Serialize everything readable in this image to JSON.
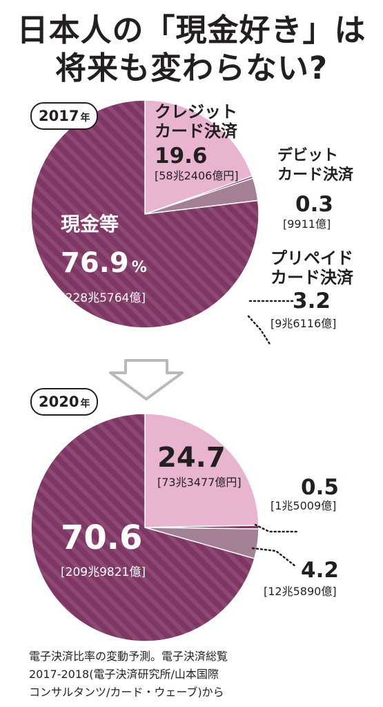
{
  "title": {
    "line1": "日本人の「現金好き」は",
    "line2": "将来も変わらない?"
  },
  "colors": {
    "cash": "#7d3762",
    "cash_stripe": "#8e4874",
    "credit": "#e8b4d0",
    "debit": "#7d3762",
    "prepaid": "#a48096",
    "ink": "#231f20",
    "arrow": "#b9b9b9"
  },
  "charts": [
    {
      "year_label": "2017",
      "year_unit": "年",
      "segments": [
        {
          "name_line1": "クレジット",
          "name_line2": "カード決済",
          "percent": "19.6",
          "value": 19.6,
          "amount": "[58兆2406億円]"
        },
        {
          "name_line1": "デビット",
          "name_line2": "カード決済",
          "percent": "0.3",
          "value": 0.3,
          "amount": "[9911億]"
        },
        {
          "name_line1": "プリペイド",
          "name_line2": "カード決済",
          "percent": "3.2",
          "value": 3.2,
          "amount": "[9兆6116億]"
        },
        {
          "name_line1": "現金等",
          "name_line2": "",
          "percent": "76.9",
          "value": 76.9,
          "amount": "[228兆5764億]",
          "pct_sign": "%"
        }
      ]
    },
    {
      "year_label": "2020",
      "year_unit": "年",
      "segments": [
        {
          "percent": "24.7",
          "value": 24.7,
          "amount": "[73兆3477億円]"
        },
        {
          "percent": "0.5",
          "value": 0.5,
          "amount": "[1兆5009億]"
        },
        {
          "percent": "4.2",
          "value": 4.2,
          "amount": "[12兆5890億]"
        },
        {
          "percent": "70.6",
          "value": 70.6,
          "amount": "[209兆9821億]"
        }
      ]
    }
  ],
  "chart_data": [
    {
      "type": "pie",
      "title": "2017年",
      "categories": [
        "クレジットカード決済",
        "デビットカード決済",
        "プリペイドカード決済",
        "現金等"
      ],
      "values": [
        19.6,
        0.3,
        3.2,
        76.9
      ],
      "amounts": [
        "58兆2406億円",
        "9911億",
        "9兆6116億",
        "228兆5764億"
      ],
      "unit": "%"
    },
    {
      "type": "pie",
      "title": "2020年",
      "categories": [
        "クレジットカード決済",
        "デビットカード決済",
        "プリペイドカード決済",
        "現金等"
      ],
      "values": [
        24.7,
        0.5,
        4.2,
        70.6
      ],
      "amounts": [
        "73兆3477億円",
        "1兆5009億",
        "12兆5890億",
        "209兆9821億"
      ],
      "unit": "%"
    }
  ],
  "source": {
    "line1": "電子決済比率の変動予測。電子決済総覧",
    "line2": "2017-2018(電子決済研究所/山本国際",
    "line3": "コンサルタンツ/カード・ウェーブ)から"
  }
}
